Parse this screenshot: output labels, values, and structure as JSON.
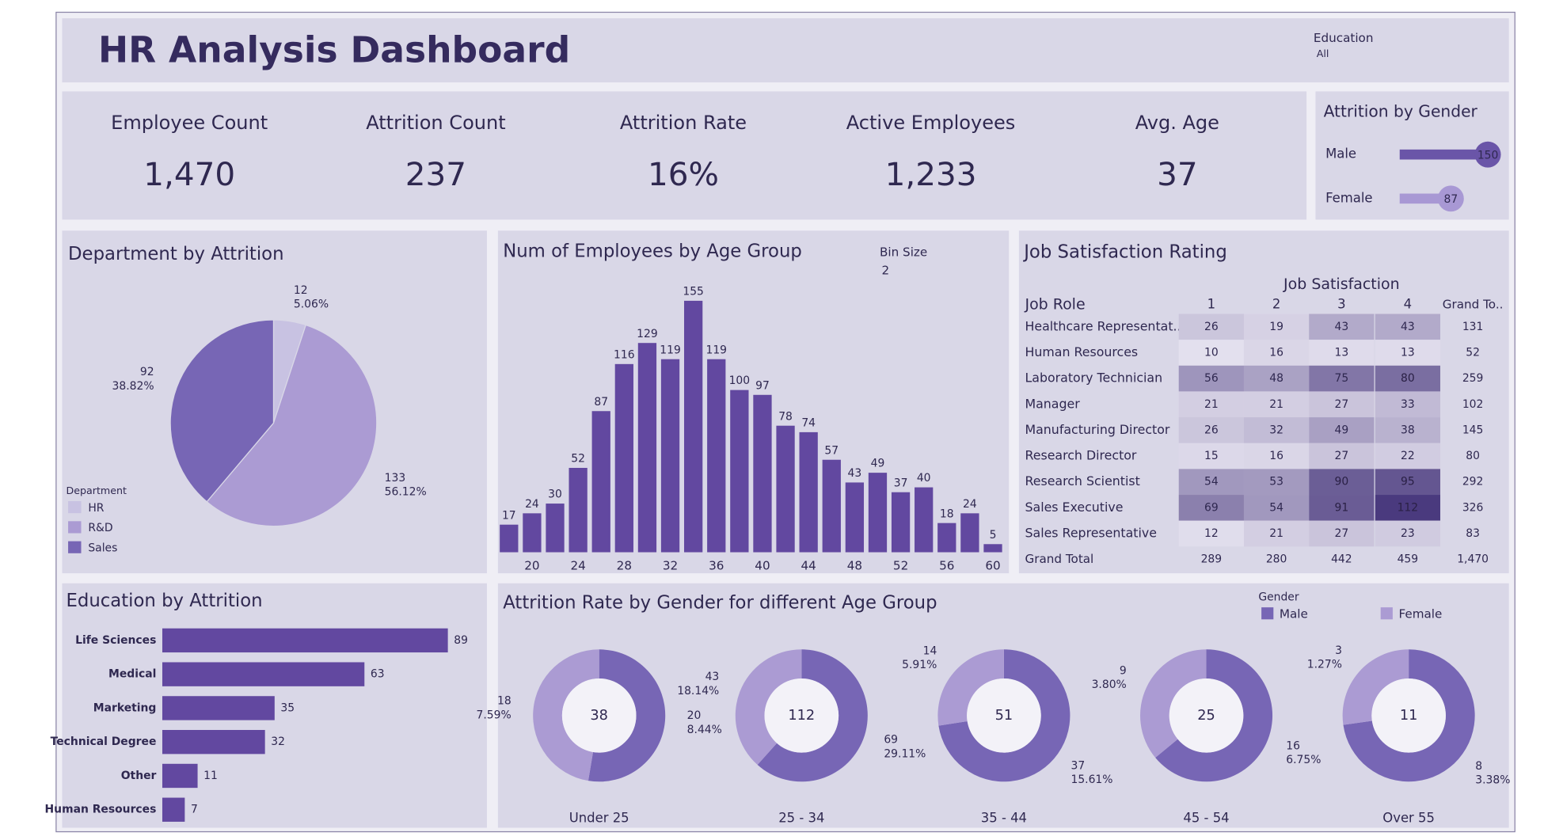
{
  "header": {
    "title": "HR Analysis Dashboard"
  },
  "filter": {
    "label": "Education",
    "value": "All"
  },
  "kpis": [
    {
      "name": "Employee Count",
      "value": "1,470"
    },
    {
      "name": "Attrition Count",
      "value": "237"
    },
    {
      "name": "Attrition Rate",
      "value": "16%"
    },
    {
      "name": "Active Employees",
      "value": "1,233"
    },
    {
      "name": "Avg. Age",
      "value": "37"
    }
  ],
  "chart_data": [
    {
      "type": "lollipop",
      "title": "Attrition by Gender",
      "categories": [
        "Male",
        "Female"
      ],
      "values": [
        150,
        87
      ],
      "colors": [
        "#6a55a8",
        "#a898d4"
      ]
    },
    {
      "type": "pie",
      "title": "Department by Attrition",
      "legend_title": "Department",
      "categories": [
        "HR",
        "R&D",
        "Sales"
      ],
      "values": [
        12,
        133,
        92
      ],
      "percent_labels": [
        "5.06%",
        "56.12%",
        "38.82%"
      ],
      "colors": [
        "#c8c2e2",
        "#ab9bd3",
        "#7766b5"
      ]
    },
    {
      "type": "bar",
      "title": "Num of Employees by Age Group",
      "bin_size_label": "Bin Size",
      "bin_size": 2,
      "x": [
        18,
        20,
        22,
        24,
        26,
        28,
        30,
        32,
        34,
        36,
        38,
        40,
        42,
        44,
        46,
        48,
        50,
        52,
        54,
        56,
        58,
        60
      ],
      "values": [
        17,
        24,
        30,
        52,
        87,
        116,
        129,
        119,
        155,
        119,
        100,
        97,
        78,
        74,
        57,
        43,
        49,
        37,
        40,
        18,
        24,
        5
      ],
      "xlim": [
        17,
        61
      ],
      "xticks": [
        20,
        24,
        28,
        32,
        36,
        40,
        44,
        48,
        52,
        56,
        60
      ],
      "color": "#6248a0"
    },
    {
      "type": "heatmap",
      "title": "Job Satisfaction Rating",
      "column_title": "Job Satisfaction",
      "row_title": "Job Role",
      "columns": [
        "1",
        "2",
        "3",
        "4"
      ],
      "total_label": "Grand To..",
      "rows": [
        "Healthcare Representat..",
        "Human Resources",
        "Laboratory Technician",
        "Manager",
        "Manufacturing Director",
        "Research Director",
        "Research Scientist",
        "Sales Executive",
        "Sales Representative"
      ],
      "values": [
        [
          26,
          19,
          43,
          43
        ],
        [
          10,
          16,
          13,
          13
        ],
        [
          56,
          48,
          75,
          80
        ],
        [
          21,
          21,
          27,
          33
        ],
        [
          26,
          32,
          49,
          38
        ],
        [
          15,
          16,
          27,
          22
        ],
        [
          54,
          53,
          90,
          95
        ],
        [
          69,
          54,
          91,
          112
        ],
        [
          12,
          21,
          27,
          23
        ]
      ],
      "row_totals": [
        131,
        52,
        259,
        102,
        145,
        80,
        292,
        326,
        83
      ],
      "grand_total_label": "Grand Total",
      "column_totals": [
        289,
        280,
        442,
        459
      ],
      "grand_total": "1,470",
      "colors": [
        "#f2f0f9",
        "#4a3a7e"
      ]
    },
    {
      "type": "hbar",
      "title": "Education by Attrition",
      "categories": [
        "Life Sciences",
        "Medical",
        "Marketing",
        "Technical Degree",
        "Other",
        "Human Resources"
      ],
      "values": [
        89,
        63,
        35,
        32,
        11,
        7
      ],
      "color": "#6248a0"
    },
    {
      "type": "donut",
      "title": "Attrition Rate by Gender for different Age Group",
      "legend_title": "Gender",
      "categories": [
        "Under 25",
        "25 - 34",
        "35 - 44",
        "45 - 54",
        "Over 55"
      ],
      "totals": [
        38,
        112,
        51,
        25,
        11
      ],
      "series": [
        {
          "name": "Male",
          "color": "#7766b5",
          "values": [
            20,
            69,
            37,
            16,
            8
          ],
          "percent_labels": [
            "8.44%",
            "29.11%",
            "15.61%",
            "6.75%",
            "3.38%"
          ]
        },
        {
          "name": "Female",
          "color": "#ab9bd3",
          "values": [
            18,
            43,
            14,
            9,
            3
          ],
          "percent_labels": [
            "7.59%",
            "18.14%",
            "5.91%",
            "3.80%",
            "1.27%"
          ]
        }
      ]
    }
  ]
}
